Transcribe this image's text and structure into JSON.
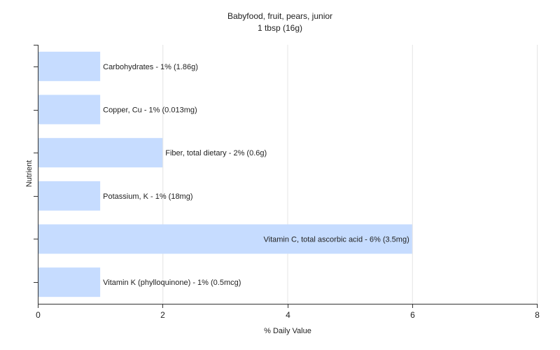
{
  "chart_data": {
    "type": "bar",
    "orientation": "horizontal",
    "title": "Babyfood, fruit, pears, junior",
    "subtitle": "1 tbsp (16g)",
    "xlabel": "% Daily Value",
    "ylabel": "Nutrient",
    "xlim": [
      0,
      8
    ],
    "xticks": [
      0,
      2,
      4,
      6,
      8
    ],
    "grid": true,
    "bar_color": "#c6dcff",
    "categories": [
      "Carbohydrates",
      "Copper, Cu",
      "Fiber, total dietary",
      "Potassium, K",
      "Vitamin C, total ascorbic acid",
      "Vitamin K (phylloquinone)"
    ],
    "values": [
      1,
      1,
      2,
      1,
      6,
      1
    ],
    "labels": [
      "Carbohydrates - 1% (1.86g)",
      "Copper, Cu - 1% (0.013mg)",
      "Fiber, total dietary - 2% (0.6g)",
      "Potassium, K - 1% (18mg)",
      "Vitamin C, total ascorbic acid - 6% (3.5mg)",
      "Vitamin K (phylloquinone) - 1% (0.5mcg)"
    ]
  }
}
